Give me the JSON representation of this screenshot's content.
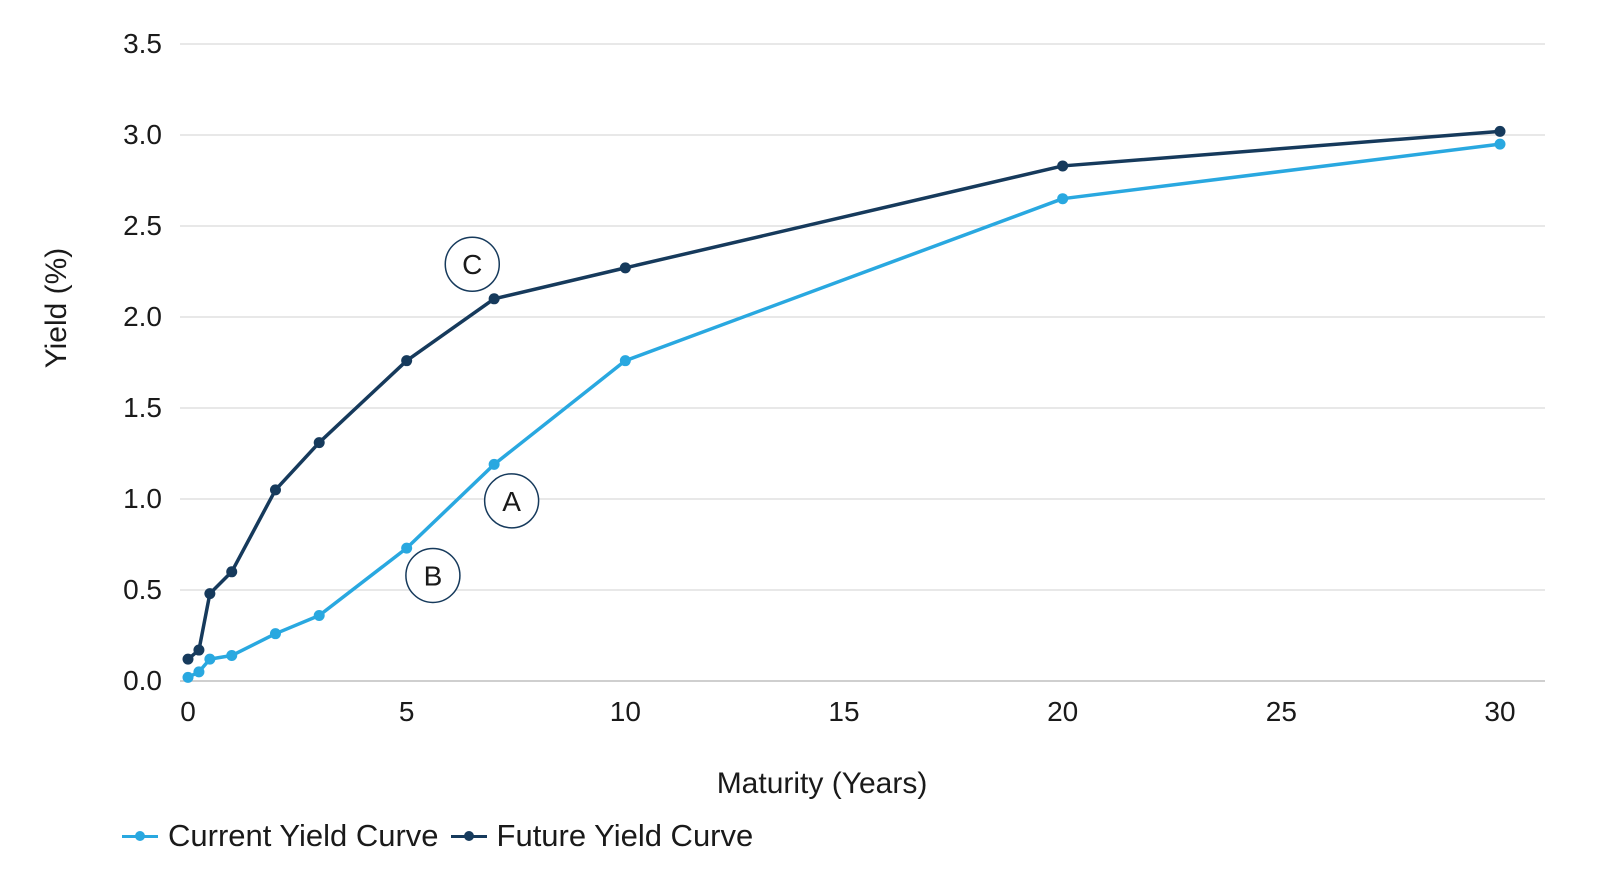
{
  "chart_data": {
    "type": "line",
    "xlabel": "Maturity (Years)",
    "ylabel": "Yield (%)",
    "xlim": [
      0,
      30
    ],
    "ylim": [
      0,
      3.5
    ],
    "xticks": [
      "0",
      "5",
      "10",
      "15",
      "20",
      "25",
      "30"
    ],
    "yticks": [
      "0.0",
      "0.5",
      "1.0",
      "1.5",
      "2.0",
      "2.5",
      "3.0",
      "3.5"
    ],
    "grid": "horizontal",
    "legend_position": "bottom-left",
    "series": [
      {
        "name": "Current Yield Curve",
        "color": "#29a8e0",
        "x": [
          0,
          0.25,
          0.5,
          1,
          2,
          3,
          5,
          7,
          10,
          20,
          30
        ],
        "y": [
          0.02,
          0.05,
          0.12,
          0.14,
          0.26,
          0.36,
          0.73,
          1.19,
          1.76,
          2.65,
          2.95
        ]
      },
      {
        "name": "Future Yield Curve",
        "color": "#163a5c",
        "x": [
          0,
          0.25,
          0.5,
          1,
          2,
          3,
          5,
          7,
          10,
          20,
          30
        ],
        "y": [
          0.12,
          0.17,
          0.48,
          0.6,
          1.05,
          1.31,
          1.76,
          2.1,
          2.27,
          2.83,
          3.02
        ]
      }
    ],
    "annotations": [
      {
        "label": "A",
        "x": 7.4,
        "y": 0.99
      },
      {
        "label": "B",
        "x": 5.6,
        "y": 0.58
      },
      {
        "label": "C",
        "x": 6.5,
        "y": 2.29
      }
    ]
  }
}
